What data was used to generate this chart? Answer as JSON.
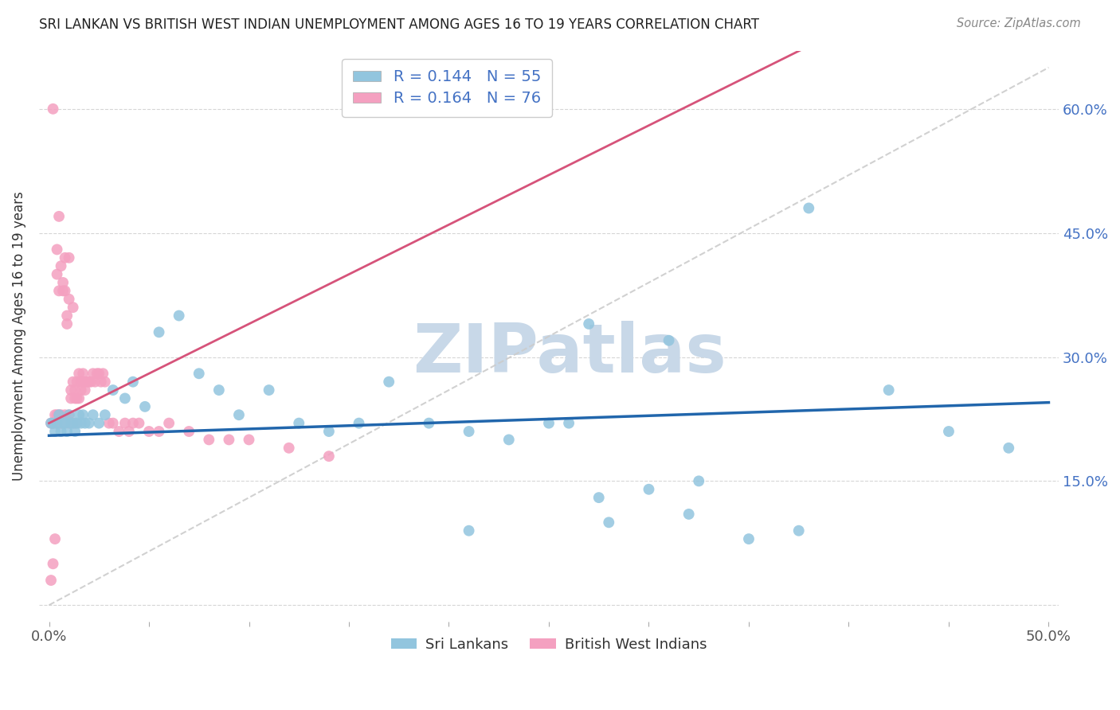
{
  "title": "SRI LANKAN VS BRITISH WEST INDIAN UNEMPLOYMENT AMONG AGES 16 TO 19 YEARS CORRELATION CHART",
  "source": "Source: ZipAtlas.com",
  "ylabel": "Unemployment Among Ages 16 to 19 years",
  "xlim": [
    0.0,
    0.5
  ],
  "ylim": [
    0.0,
    0.65
  ],
  "sri_lankan_color": "#92c5de",
  "british_wi_color": "#f4a0c0",
  "sri_lankan_line_color": "#2166ac",
  "british_wi_line_color": "#d6537a",
  "diagonal_color": "#cccccc",
  "watermark": "ZIPatlas",
  "watermark_color": "#c8d8e8",
  "sl_R": 0.144,
  "sl_N": 55,
  "bwi_R": 0.164,
  "bwi_N": 76,
  "sl_x": [
    0.001,
    0.002,
    0.003,
    0.004,
    0.005,
    0.006,
    0.007,
    0.008,
    0.009,
    0.01,
    0.011,
    0.012,
    0.013,
    0.014,
    0.015,
    0.016,
    0.017,
    0.018,
    0.02,
    0.022,
    0.025,
    0.028,
    0.032,
    0.038,
    0.042,
    0.048,
    0.055,
    0.065,
    0.075,
    0.085,
    0.095,
    0.11,
    0.125,
    0.14,
    0.155,
    0.17,
    0.19,
    0.21,
    0.23,
    0.25,
    0.275,
    0.3,
    0.325,
    0.35,
    0.375,
    0.27,
    0.31,
    0.38,
    0.42,
    0.45,
    0.28,
    0.32,
    0.26,
    0.48,
    0.21
  ],
  "sl_y": [
    0.22,
    0.22,
    0.21,
    0.22,
    0.23,
    0.21,
    0.22,
    0.22,
    0.21,
    0.23,
    0.22,
    0.22,
    0.21,
    0.22,
    0.23,
    0.22,
    0.23,
    0.22,
    0.22,
    0.23,
    0.22,
    0.23,
    0.26,
    0.25,
    0.27,
    0.24,
    0.33,
    0.35,
    0.28,
    0.26,
    0.23,
    0.26,
    0.22,
    0.21,
    0.22,
    0.27,
    0.22,
    0.21,
    0.2,
    0.22,
    0.13,
    0.14,
    0.15,
    0.08,
    0.09,
    0.34,
    0.32,
    0.48,
    0.26,
    0.21,
    0.1,
    0.11,
    0.22,
    0.19,
    0.09
  ],
  "bwi_x": [
    0.001,
    0.001,
    0.002,
    0.002,
    0.003,
    0.003,
    0.003,
    0.004,
    0.004,
    0.004,
    0.005,
    0.005,
    0.005,
    0.006,
    0.006,
    0.007,
    0.007,
    0.007,
    0.008,
    0.008,
    0.008,
    0.009,
    0.009,
    0.01,
    0.01,
    0.01,
    0.011,
    0.011,
    0.011,
    0.012,
    0.012,
    0.013,
    0.013,
    0.013,
    0.014,
    0.014,
    0.015,
    0.015,
    0.016,
    0.016,
    0.017,
    0.017,
    0.018,
    0.018,
    0.019,
    0.02,
    0.021,
    0.022,
    0.023,
    0.024,
    0.025,
    0.026,
    0.027,
    0.028,
    0.03,
    0.032,
    0.035,
    0.038,
    0.04,
    0.042,
    0.045,
    0.05,
    0.055,
    0.06,
    0.07,
    0.08,
    0.09,
    0.1,
    0.12,
    0.14,
    0.002,
    0.005,
    0.008,
    0.01,
    0.004,
    0.006
  ],
  "bwi_y": [
    0.22,
    0.03,
    0.22,
    0.05,
    0.22,
    0.23,
    0.08,
    0.23,
    0.22,
    0.4,
    0.22,
    0.23,
    0.38,
    0.22,
    0.23,
    0.38,
    0.39,
    0.22,
    0.23,
    0.38,
    0.22,
    0.34,
    0.35,
    0.22,
    0.37,
    0.23,
    0.25,
    0.26,
    0.22,
    0.36,
    0.27,
    0.25,
    0.26,
    0.22,
    0.25,
    0.27,
    0.25,
    0.28,
    0.26,
    0.27,
    0.27,
    0.28,
    0.26,
    0.27,
    0.27,
    0.27,
    0.27,
    0.28,
    0.27,
    0.28,
    0.28,
    0.27,
    0.28,
    0.27,
    0.22,
    0.22,
    0.21,
    0.22,
    0.21,
    0.22,
    0.22,
    0.21,
    0.21,
    0.22,
    0.21,
    0.2,
    0.2,
    0.2,
    0.19,
    0.18,
    0.6,
    0.47,
    0.42,
    0.42,
    0.43,
    0.41
  ]
}
